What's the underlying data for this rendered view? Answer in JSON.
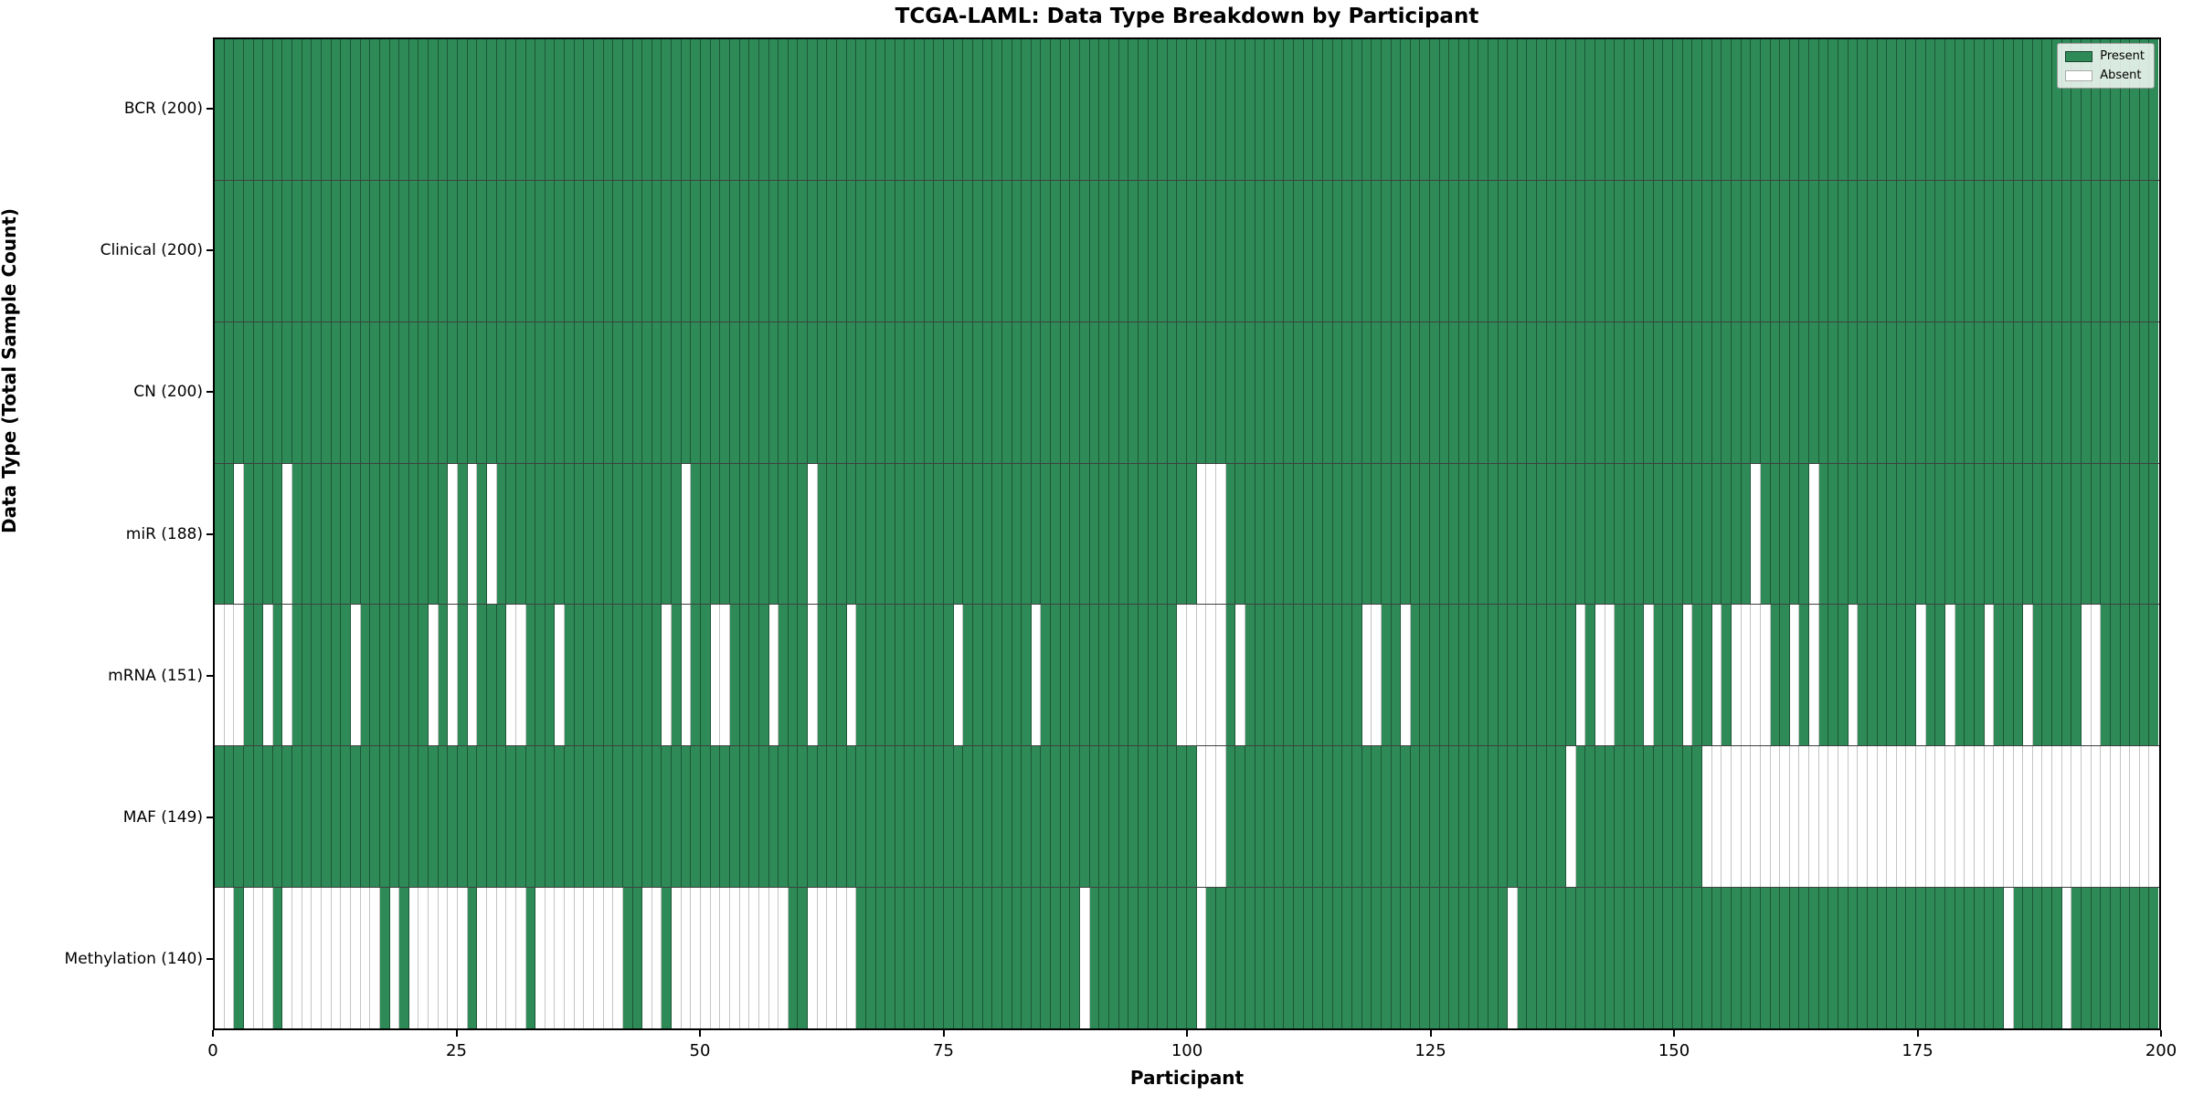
{
  "chart_data": {
    "type": "heatmap",
    "title": "TCGA-LAML: Data Type Breakdown by Participant",
    "xlabel": "Participant",
    "ylabel": "Data Type (Total Sample Count)",
    "n_participants": 200,
    "x_ticks": [
      0,
      25,
      50,
      75,
      100,
      125,
      150,
      175,
      200
    ],
    "xlim": [
      0,
      200
    ],
    "grid": false,
    "legend_position": "upper right",
    "colors": {
      "present": "#2e8b57",
      "absent": "#ffffff"
    },
    "legend": {
      "present_label": "Present",
      "absent_label": "Absent"
    },
    "rows": [
      {
        "label": "BCR (200)",
        "name": "BCR",
        "total": 200,
        "absent": []
      },
      {
        "label": "Clinical (200)",
        "name": "Clinical",
        "total": 200,
        "absent": []
      },
      {
        "label": "CN (200)",
        "name": "CN",
        "total": 200,
        "absent": []
      },
      {
        "label": "miR (188)",
        "name": "miR",
        "total": 188,
        "absent": [
          2,
          7,
          24,
          26,
          28,
          48,
          61,
          101,
          102,
          103,
          158,
          164
        ]
      },
      {
        "label": "mRNA (151)",
        "name": "mRNA",
        "total": 151,
        "absent": [
          0,
          1,
          2,
          5,
          7,
          14,
          22,
          24,
          26,
          30,
          31,
          35,
          46,
          48,
          51,
          52,
          57,
          61,
          65,
          76,
          84,
          99,
          100,
          101,
          102,
          103,
          105,
          118,
          119,
          122,
          140,
          142,
          143,
          147,
          151,
          154,
          156,
          157,
          158,
          159,
          162,
          164,
          168,
          175,
          178,
          182,
          186,
          192,
          193
        ]
      },
      {
        "label": "MAF (149)",
        "name": "MAF",
        "total": 149,
        "absent": [
          101,
          102,
          103,
          139,
          153,
          154,
          155,
          156,
          157,
          158,
          159,
          160,
          161,
          162,
          163,
          164,
          165,
          166,
          167,
          168,
          169,
          170,
          171,
          172,
          173,
          174,
          175,
          176,
          177,
          178,
          179,
          180,
          181,
          182,
          183,
          184,
          185,
          186,
          187,
          188,
          189,
          190,
          191,
          192,
          193,
          194,
          195,
          196,
          197,
          198,
          199
        ]
      },
      {
        "label": "Methylation (140)",
        "name": "Methylation",
        "total": 140,
        "absent": [
          0,
          1,
          3,
          4,
          5,
          7,
          8,
          9,
          10,
          11,
          12,
          13,
          14,
          15,
          16,
          18,
          20,
          21,
          22,
          23,
          24,
          25,
          27,
          28,
          29,
          30,
          31,
          33,
          34,
          35,
          36,
          37,
          38,
          39,
          40,
          41,
          44,
          45,
          47,
          48,
          49,
          50,
          51,
          52,
          53,
          54,
          55,
          56,
          57,
          58,
          61,
          62,
          63,
          64,
          65,
          89,
          101,
          133,
          184,
          190
        ]
      }
    ]
  }
}
